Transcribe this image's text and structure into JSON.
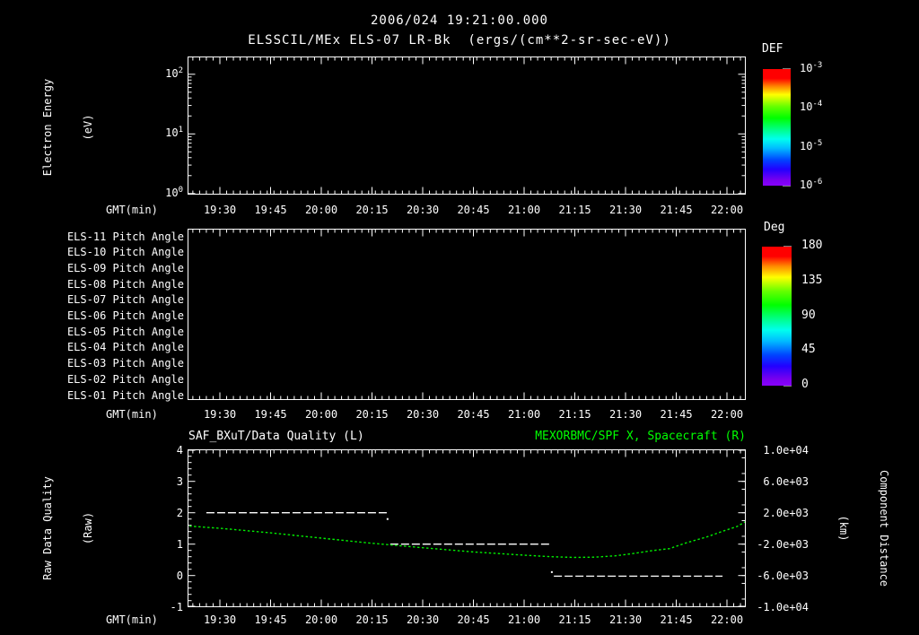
{
  "header": {
    "title": "2006/024 19:21:00.000",
    "subtitle": "ELSSCIL/MEx ELS-07 LR-Bk  (ergs/(cm**2-sr-sec-eV))"
  },
  "colors": {
    "background": "#000000",
    "foreground": "#ffffff",
    "series_green": "#00ee00",
    "title_green": "#00ff00"
  },
  "time_axis": {
    "label": "GMT(min)",
    "tick_labels": [
      "19:30",
      "19:45",
      "20:00",
      "20:15",
      "20:30",
      "20:45",
      "21:00",
      "21:15",
      "21:30",
      "21:45",
      "22:00"
    ],
    "visible_range_start": "19:21",
    "visible_range_end": "22:06"
  },
  "energy_panel": {
    "ylabel": [
      "Electron Energy",
      "(eV)"
    ],
    "ytick_labels": [
      {
        "base": "10",
        "exp": "2"
      },
      {
        "base": "10",
        "exp": "1"
      },
      {
        "base": "10",
        "exp": "0"
      }
    ]
  },
  "def_colorbar": {
    "title": "DEF",
    "tick_labels": [
      {
        "base": "10",
        "exp": "-3"
      },
      {
        "base": "10",
        "exp": "-4"
      },
      {
        "base": "10",
        "exp": "-5"
      },
      {
        "base": "10",
        "exp": "-6"
      }
    ],
    "gradient_stops": [
      "#ff0000 0%",
      "#ff0000 8%",
      "#ff8800 15%",
      "#ffff00 22%",
      "#66ff00 32%",
      "#00ff00 42%",
      "#00ff88 52%",
      "#00ffee 60%",
      "#00bbff 68%",
      "#0044ff 78%",
      "#2200ff 86%",
      "#7700ee 95%",
      "#8800ff 100%"
    ]
  },
  "pitch_panel": {
    "row_labels": [
      "ELS-11 Pitch Angle",
      "ELS-10 Pitch Angle",
      "ELS-09 Pitch Angle",
      "ELS-08 Pitch Angle",
      "ELS-07 Pitch Angle",
      "ELS-06 Pitch Angle",
      "ELS-05 Pitch Angle",
      "ELS-04 Pitch Angle",
      "ELS-03 Pitch Angle",
      "ELS-02 Pitch Angle",
      "ELS-01 Pitch Angle"
    ]
  },
  "deg_colorbar": {
    "title": "Deg",
    "tick_labels": [
      "180",
      "135",
      "90",
      "45",
      "0"
    ],
    "gradient_stops": [
      "#ff0000 0%",
      "#ff0000 7%",
      "#ff8800 14%",
      "#ffff00 22%",
      "#66ff00 32%",
      "#00ff00 42%",
      "#00ff88 52%",
      "#00ffee 60%",
      "#00bbff 68%",
      "#0044ff 78%",
      "#2200ff 86%",
      "#7700ee 95%",
      "#8800ff 100%"
    ]
  },
  "quality_panel": {
    "title_left": "SAF_BXuT/Data Quality (L)",
    "title_right": "MEXORBMC/SPF X, Spacecraft (R)",
    "ylabel_left": [
      "Raw Data Quality",
      "(Raw)"
    ],
    "ylabel_right": [
      "Component Distance",
      "(km)"
    ],
    "ytick_labels_left": [
      "4",
      "3",
      "2",
      "1",
      "0",
      "-1"
    ],
    "ytick_labels_right": [
      "1.0e+04",
      "6.0e+03",
      "2.0e+03",
      "-2.0e+03",
      "-6.0e+03",
      "-1.0e+04"
    ]
  },
  "chart_data": [
    {
      "type": "heatmap",
      "panel": "electron-energy-spectrogram",
      "title": "ELSSCIL/MEx ELS-07 LR-Bk",
      "units": "ergs/(cm**2-sr-sec-eV)",
      "ylabel": "Electron Energy (eV)",
      "yscale": "log",
      "ytick_values": [
        1,
        10,
        100
      ],
      "xlabel": "GMT(min)",
      "xtick_labels": [
        "19:30",
        "19:45",
        "20:00",
        "20:15",
        "20:30",
        "20:45",
        "21:00",
        "21:15",
        "21:30",
        "21:45",
        "22:00"
      ],
      "colorbar": {
        "title": "DEF",
        "scale": "log",
        "tick_values": [
          0.001,
          0.0001,
          1e-05,
          1e-06
        ]
      },
      "values": [],
      "note": "panel is empty (no spectrogram data rendered)"
    },
    {
      "type": "heatmap",
      "panel": "pitch-angle-rows",
      "rows": [
        "ELS-11 Pitch Angle",
        "ELS-10 Pitch Angle",
        "ELS-09 Pitch Angle",
        "ELS-08 Pitch Angle",
        "ELS-07 Pitch Angle",
        "ELS-06 Pitch Angle",
        "ELS-05 Pitch Angle",
        "ELS-04 Pitch Angle",
        "ELS-03 Pitch Angle",
        "ELS-02 Pitch Angle",
        "ELS-01 Pitch Angle"
      ],
      "xlabel": "GMT(min)",
      "xtick_labels": [
        "19:30",
        "19:45",
        "20:00",
        "20:15",
        "20:30",
        "20:45",
        "21:00",
        "21:15",
        "21:30",
        "21:45",
        "22:00"
      ],
      "colorbar": {
        "title": "Deg",
        "tick_values": [
          180,
          135,
          90,
          45,
          0
        ],
        "range": [
          0,
          180
        ]
      },
      "values": [],
      "note": "panel is empty (no pitch-angle data rendered)"
    },
    {
      "type": "line",
      "panel": "quality-and-distance",
      "titles": [
        "SAF_BXuT/Data Quality (L)",
        "MEXORBMC/SPF X, Spacecraft (R)"
      ],
      "xlabel": "GMT(min)",
      "xtick_labels": [
        "19:30",
        "19:45",
        "20:00",
        "20:15",
        "20:30",
        "20:45",
        "21:00",
        "21:15",
        "21:30",
        "21:45",
        "22:00"
      ],
      "time_base": "minutes after 19:00 GMT",
      "left_axis": {
        "label": "Raw Data Quality (Raw)",
        "ylim": [
          -1,
          4
        ],
        "ticks": [
          4,
          3,
          2,
          1,
          0,
          -1
        ]
      },
      "right_axis": {
        "label": "Component Distance (km)",
        "ylim": [
          -10000,
          10000
        ],
        "ticks": [
          10000,
          6000,
          2000,
          -2000,
          -6000,
          -10000
        ]
      },
      "series": [
        {
          "name": "SAF_BXuT/Data Quality (L)",
          "axis": "left",
          "color": "#ffffff",
          "style": "dashed-step",
          "segments": [
            {
              "value": 2,
              "plot_value": 2.0,
              "t_start": 26.0,
              "t_end": 79.6
            },
            {
              "value": 1,
              "plot_value": 1.0,
              "t_start": 80.4,
              "t_end": 128.0
            },
            {
              "value": 0,
              "plot_value": -0.02,
              "t_start": 128.8,
              "t_end": 178.7
            }
          ],
          "transition_dots": [
            {
              "t": 79.6,
              "value": 1.8
            },
            {
              "t": 128.2,
              "value": 0.11
            }
          ]
        },
        {
          "name": "MEXORBMC/SPF X, Spacecraft (R)",
          "axis": "right",
          "color": "#00ee00",
          "style": "dotted",
          "points_t_km": [
            [
              21,
              300
            ],
            [
              30,
              20
            ],
            [
              45,
              -560
            ],
            [
              60,
              -1230
            ],
            [
              75,
              -1890
            ],
            [
              90,
              -2460
            ],
            [
              105,
              -2990
            ],
            [
              120,
              -3410
            ],
            [
              128,
              -3600
            ],
            [
              135,
              -3690
            ],
            [
              141,
              -3660
            ],
            [
              147,
              -3490
            ],
            [
              152,
              -3210
            ],
            [
              158,
              -2820
            ],
            [
              163,
              -2570
            ],
            [
              168,
              -1830
            ],
            [
              174,
              -1090
            ],
            [
              179,
              -320
            ],
            [
              183,
              250
            ],
            [
              186,
              990
            ]
          ]
        }
      ]
    }
  ]
}
